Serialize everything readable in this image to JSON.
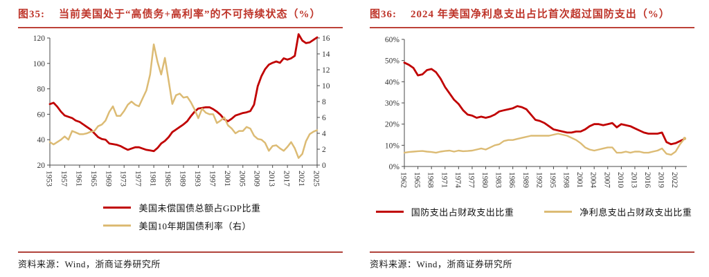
{
  "figures": [
    {
      "label": "图35:",
      "title": "当前美国处于“高债务+高利率”的不可持续状态（%）",
      "source": "资料来源：Wind，浙商证券研究所"
    },
    {
      "label": "图36:",
      "title": "2024 年美国净利息支出占比首次超过国防支出（%）",
      "source": "资料来源：Wind，浙商证券研究所"
    }
  ],
  "colors": {
    "title_red": "#BE3429",
    "rule_red": "#B0423A",
    "series_red": "#C00000",
    "series_gold": "#DCBB74",
    "axis": "#4a4a4a"
  },
  "chart_data": [
    {
      "type": "line",
      "title": "当前美国处于“高债务+高利率”的不可持续状态（%）",
      "x_min": 1953,
      "x_max": 2025,
      "x_ticks": [
        1953,
        1957,
        1961,
        1965,
        1969,
        1973,
        1977,
        1981,
        1985,
        1989,
        1993,
        1997,
        2001,
        2005,
        2009,
        2013,
        2017,
        2021,
        2025
      ],
      "left_axis": {
        "min": 20,
        "max": 120,
        "ticks": [
          20,
          40,
          60,
          80,
          100,
          120
        ],
        "suffix": ""
      },
      "right_axis": {
        "min": 0,
        "max": 16,
        "ticks": [
          0,
          2,
          4,
          6,
          8,
          10,
          12,
          14,
          16
        ],
        "suffix": ""
      },
      "grid": false,
      "legend_position": "bottom-stacked",
      "series": [
        {
          "name": "美国未偿国债总额占GDP比重",
          "axis": "left",
          "color": "#C00000",
          "width": 2.8,
          "end_dot": false,
          "values": [
            68,
            69,
            66,
            62,
            59,
            58,
            57,
            55,
            54,
            52,
            50,
            48,
            45,
            42,
            40.5,
            40,
            37,
            36.5,
            36,
            35,
            33.5,
            32,
            33,
            34,
            34,
            33,
            32,
            31.5,
            31,
            33.5,
            37,
            39,
            42,
            46,
            48,
            50,
            52,
            54.5,
            58.5,
            62,
            64.5,
            65,
            65.5,
            65.5,
            64,
            62,
            59.5,
            56,
            54.5,
            56.5,
            59,
            60,
            61,
            61.5,
            62.5,
            67.5,
            82,
            90,
            95.5,
            99,
            100.5,
            101.5,
            100.5,
            104,
            103,
            104,
            106,
            123,
            118,
            116,
            116.5,
            118.5,
            120.5
          ]
        },
        {
          "name": "美国10年期国债利率（右）",
          "axis": "right",
          "color": "#DCBB74",
          "width": 2.5,
          "end_dot": false,
          "values": [
            2.9,
            2.6,
            2.9,
            3.2,
            3.6,
            3.2,
            4.3,
            4.1,
            3.9,
            3.9,
            4.0,
            4.2,
            4.3,
            4.9,
            5.1,
            5.6,
            6.7,
            7.4,
            6.2,
            6.2,
            6.8,
            7.6,
            8.0,
            7.6,
            7.4,
            8.4,
            9.4,
            11.4,
            15.2,
            13.0,
            11.4,
            13.5,
            10.6,
            7.7,
            8.8,
            9.0,
            8.5,
            8.6,
            7.9,
            7.0,
            5.9,
            7.1,
            6.6,
            6.4,
            6.4,
            5.3,
            5.6,
            6.0,
            5.0,
            4.6,
            4.0,
            4.3,
            4.3,
            4.8,
            4.6,
            3.7,
            3.3,
            3.2,
            2.8,
            1.8,
            2.4,
            2.5,
            2.1,
            1.8,
            2.3,
            2.9,
            2.1,
            0.9,
            1.4,
            3.0,
            3.9,
            4.2,
            4.4
          ]
        }
      ]
    },
    {
      "type": "line",
      "title": "2024 年美国净利息支出占比首次超过国防支出（%）",
      "x_min": 1962,
      "x_max": 2024.5,
      "x_ticks": [
        1962,
        1965,
        1968,
        1971,
        1974,
        1977,
        1980,
        1983,
        1986,
        1989,
        1992,
        1995,
        1998,
        2001,
        2004,
        2007,
        2010,
        2013,
        2016,
        2019,
        2022
      ],
      "left_axis": {
        "min": 0,
        "max": 60,
        "ticks": [
          0,
          10,
          20,
          30,
          40,
          50,
          60
        ],
        "suffix": "%"
      },
      "right_axis": null,
      "grid": false,
      "legend_position": "bottom-row",
      "series": [
        {
          "name": "国防支出占财政支出比重",
          "axis": "left",
          "color": "#C00000",
          "width": 2.8,
          "end_dot": false,
          "values": [
            49,
            48,
            46.5,
            43,
            43.5,
            45.5,
            46,
            44.5,
            41.5,
            37.5,
            34.5,
            31.5,
            29.5,
            26.5,
            24.5,
            24,
            23,
            23.5,
            23,
            23.5,
            24.5,
            26,
            26.5,
            27,
            27.5,
            28.5,
            28,
            27,
            24.5,
            22,
            21.5,
            20.5,
            19,
            17.5,
            17,
            16.5,
            16,
            16,
            16.5,
            16.5,
            17.5,
            19,
            20,
            20,
            19.5,
            20,
            20.5,
            18.5,
            20,
            19.5,
            19,
            18,
            17,
            16,
            15.5,
            15.5,
            15.5,
            16,
            11.5,
            10.5,
            11,
            12,
            13
          ]
        },
        {
          "name": "净利息支出占财政支出比重",
          "axis": "left",
          "color": "#DCBB74",
          "width": 2.4,
          "end_dot": true,
          "values": [
            6.5,
            6.8,
            7,
            7.2,
            7.3,
            7,
            6.8,
            6.5,
            7,
            7.3,
            7.5,
            7,
            7.5,
            7.2,
            7.3,
            7.5,
            8,
            8.5,
            8,
            9,
            10,
            10.5,
            12,
            12.5,
            12.5,
            13,
            13.5,
            14,
            14.5,
            14.5,
            14.5,
            14.5,
            14.5,
            15,
            15.5,
            15,
            14.5,
            13.5,
            12.5,
            11,
            9,
            8,
            7.5,
            8,
            8.5,
            9,
            9,
            6.5,
            6.5,
            7,
            6.5,
            7,
            7,
            6.5,
            6.5,
            7,
            7.5,
            8.5,
            6,
            5.5,
            7,
            10.5,
            13.2
          ]
        }
      ]
    }
  ]
}
